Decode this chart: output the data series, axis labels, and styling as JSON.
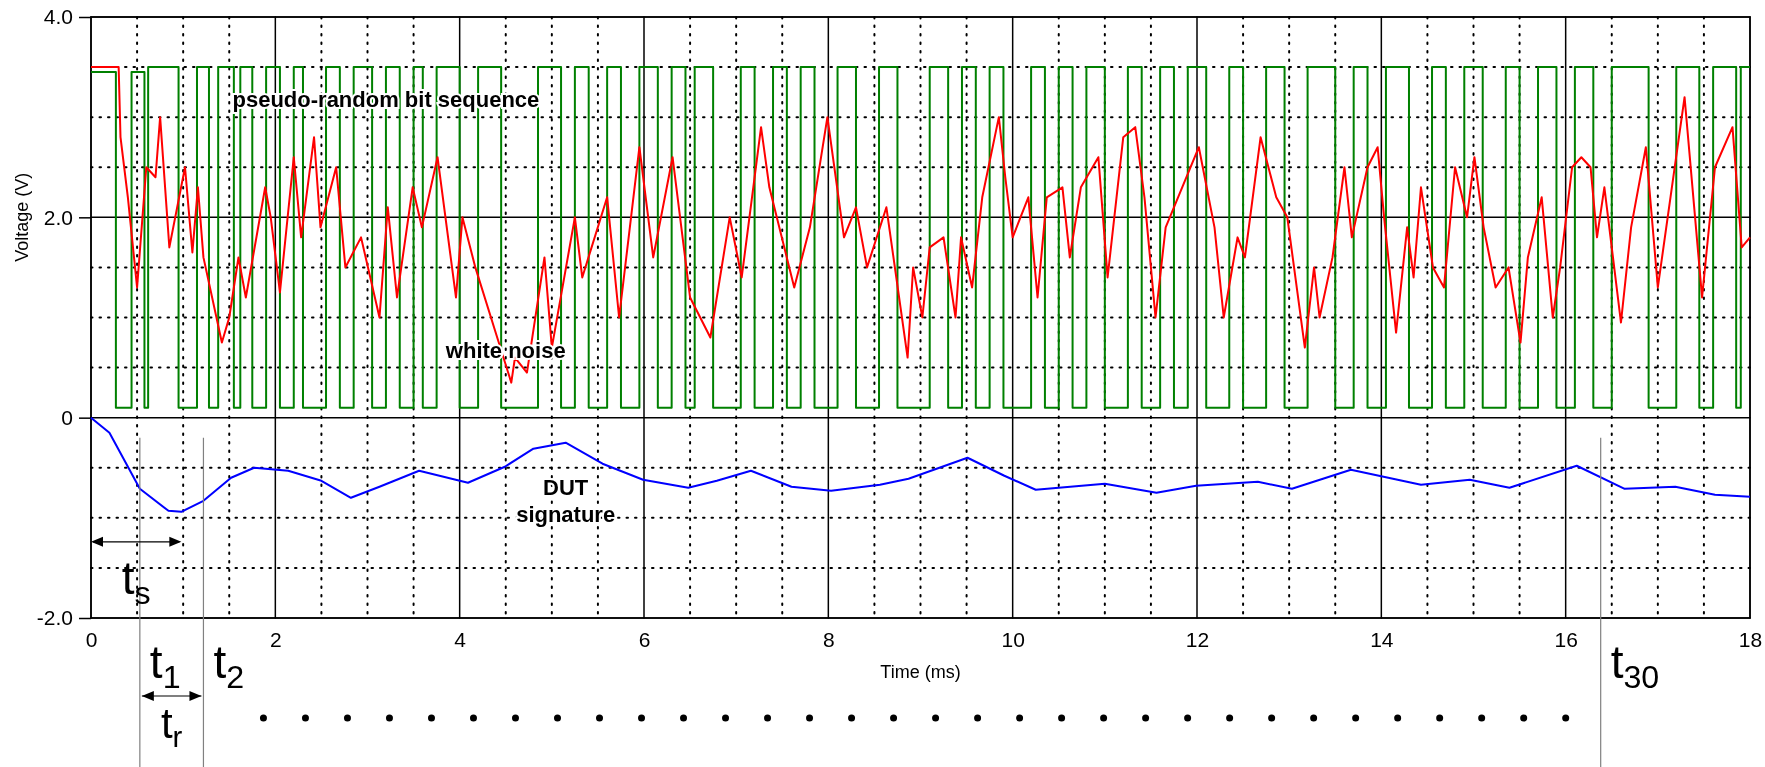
{
  "chart_data": {
    "type": "line",
    "xlabel": "Time (ms)",
    "ylabel": "Voltage (V)",
    "xlim": [
      0,
      18
    ],
    "ylim": [
      -2,
      4
    ],
    "xticks": [
      0,
      {
        "value": 0.5,
        "label": null
      },
      {
        "value": 1,
        "label": null
      },
      {
        "value": 1.5,
        "label": null
      },
      2,
      {
        "value": 2.5,
        "label": null
      },
      {
        "value": 3,
        "label": null
      },
      {
        "value": 3.5,
        "label": null
      },
      4,
      {
        "value": 4.5,
        "label": null
      },
      {
        "value": 5,
        "label": null
      },
      {
        "value": 5.5,
        "label": null
      },
      6,
      {
        "value": 6.5,
        "label": null
      },
      {
        "value": 7,
        "label": null
      },
      {
        "value": 7.5,
        "label": null
      },
      8,
      {
        "value": 8.5,
        "label": null
      },
      {
        "value": 9,
        "label": null
      },
      {
        "value": 9.5,
        "label": null
      },
      10,
      {
        "value": 10.5,
        "label": null
      },
      {
        "value": 11,
        "label": null
      },
      {
        "value": 11.5,
        "label": null
      },
      12,
      {
        "value": 12.5,
        "label": null
      },
      {
        "value": 13,
        "label": null
      },
      {
        "value": 13.5,
        "label": null
      },
      14,
      {
        "value": 14.5,
        "label": null
      },
      {
        "value": 15,
        "label": null
      },
      {
        "value": 15.5,
        "label": null
      },
      16,
      {
        "value": 16.5,
        "label": null
      },
      {
        "value": 17,
        "label": null
      },
      {
        "value": 17.5,
        "label": null
      },
      18
    ],
    "yticks": [
      {
        "value": -2,
        "label": "-2.0"
      },
      {
        "value": -1.5,
        "label": null
      },
      {
        "value": -1,
        "label": null
      },
      {
        "value": -0.5,
        "label": null
      },
      0,
      {
        "value": 0.5,
        "label": null
      },
      {
        "value": 1,
        "label": null
      },
      {
        "value": 1.5,
        "label": null
      },
      {
        "value": 2,
        "label": "2.0"
      },
      {
        "value": 2.5,
        "label": null
      },
      {
        "value": 3,
        "label": null
      },
      {
        "value": 3.5,
        "label": null
      },
      {
        "value": 4,
        "label": "4.0"
      }
    ],
    "grid": true,
    "line_style": "solid",
    "series": [
      {
        "type": "step",
        "color": "#008000",
        "x": [
          0,
          0.27,
          0.44,
          0.58,
          0.62,
          0.95,
          1.15,
          1.28,
          1.38,
          1.55,
          1.62,
          1.75,
          1.9,
          2.05,
          2.2,
          2.3,
          2.55,
          2.7,
          2.85,
          3.05,
          3.2,
          3.35,
          3.5,
          3.6,
          3.75,
          4.0,
          4.2,
          4.45,
          4.85,
          5.1,
          5.25,
          5.4,
          5.6,
          5.75,
          5.95,
          6.15,
          6.3,
          6.45,
          6.55,
          6.75,
          7.05,
          7.2,
          7.4,
          7.55,
          7.7,
          7.85,
          8.1,
          8.3,
          8.55,
          8.75,
          9.1,
          9.3,
          9.45,
          9.6,
          9.75,
          9.9,
          10.2,
          10.35,
          10.5,
          10.65,
          10.8,
          11.0,
          11.25,
          11.4,
          11.6,
          11.75,
          11.9,
          12.1,
          12.35,
          12.5,
          12.75,
          12.95,
          13.2,
          13.5,
          13.7,
          13.85,
          14.05,
          14.3,
          14.55,
          14.7,
          14.9,
          15.1,
          15.35,
          15.5,
          15.7,
          15.9,
          16.1,
          16.3,
          16.5,
          16.9,
          17.2,
          17.45,
          17.6,
          17.85,
          17.9,
          18
        ],
        "values": [
          3.45,
          0.1,
          3.45,
          0.1,
          3.5,
          0.1,
          3.5,
          0.1,
          3.5,
          0.1,
          3.5,
          0.1,
          3.5,
          0.1,
          3.5,
          0.1,
          3.5,
          0.1,
          3.5,
          0.1,
          3.5,
          0.1,
          3.5,
          0.1,
          3.5,
          0.1,
          3.5,
          0.1,
          3.5,
          0.1,
          3.5,
          0.1,
          3.5,
          0.1,
          3.5,
          0.1,
          3.5,
          0.1,
          3.5,
          0.1,
          3.5,
          0.1,
          3.5,
          0.1,
          3.5,
          0.1,
          3.5,
          0.1,
          3.5,
          0.1,
          3.5,
          0.1,
          3.5,
          0.1,
          3.5,
          0.1,
          3.5,
          0.1,
          3.5,
          0.1,
          3.5,
          0.1,
          3.5,
          0.1,
          3.5,
          0.1,
          3.5,
          0.1,
          3.5,
          0.1,
          3.5,
          0.1,
          3.5,
          0.1,
          3.5,
          0.1,
          3.5,
          0.1,
          3.5,
          0.1,
          3.5,
          0.1,
          3.5,
          0.1,
          3.5,
          0.1,
          3.5,
          0.1,
          3.5,
          0.1,
          3.5,
          0.1,
          3.5,
          0.1,
          3.5,
          3.5
        ]
      },
      {
        "color": "#ff0000",
        "x": [
          0,
          0.3,
          0.32,
          0.4,
          0.5,
          0.6,
          0.7,
          0.75,
          0.85,
          1.02,
          1.1,
          1.16,
          1.22,
          1.42,
          1.5,
          1.6,
          1.68,
          1.89,
          1.95,
          2.05,
          2.2,
          2.28,
          2.42,
          2.49,
          2.66,
          2.76,
          2.93,
          3.13,
          3.22,
          3.32,
          3.49,
          3.59,
          3.76,
          3.96,
          4.03,
          4.17,
          4.56,
          4.6,
          4.73,
          4.92,
          5.0,
          5.25,
          5.33,
          5.6,
          5.73,
          5.95,
          6.1,
          6.31,
          6.5,
          6.72,
          6.93,
          7.06,
          7.27,
          7.36,
          7.63,
          7.8,
          7.99,
          8.17,
          8.3,
          8.42,
          8.63,
          8.86,
          8.92,
          9.02,
          9.1,
          9.25,
          9.38,
          9.44,
          9.56,
          9.67,
          9.85,
          9.92,
          10.0,
          10.17,
          10.27,
          10.37,
          10.54,
          10.62,
          10.74,
          10.93,
          11.03,
          11.2,
          11.33,
          11.43,
          11.55,
          11.66,
          12.02,
          12.19,
          12.29,
          12.44,
          12.52,
          12.69,
          12.86,
          12.98,
          13.17,
          13.27,
          13.33,
          13.47,
          13.6,
          13.68,
          13.85,
          13.96,
          14.03,
          14.16,
          14.28,
          14.35,
          14.43,
          14.56,
          14.68,
          14.8,
          14.93,
          15.01,
          15.11,
          15.24,
          15.38,
          15.51,
          15.59,
          15.74,
          15.86,
          15.94,
          16.07,
          16.17,
          16.27,
          16.34,
          16.42,
          16.6,
          16.71,
          16.87,
          17.0,
          17.29,
          17.48,
          17.62,
          17.81,
          17.91,
          18.0
        ],
        "values": [
          3.5,
          3.5,
          2.8,
          2.2,
          1.3,
          2.5,
          2.4,
          3.0,
          1.7,
          2.5,
          1.65,
          2.3,
          1.6,
          0.75,
          1.0,
          1.6,
          1.2,
          2.3,
          2.0,
          1.25,
          2.6,
          1.8,
          2.8,
          1.9,
          2.5,
          1.5,
          1.8,
          1.0,
          2.1,
          1.2,
          2.3,
          1.9,
          2.6,
          1.2,
          2.0,
          1.5,
          0.35,
          0.6,
          0.45,
          1.6,
          0.7,
          2.0,
          1.4,
          2.2,
          1.0,
          2.7,
          1.6,
          2.6,
          1.2,
          0.8,
          2.0,
          1.4,
          2.9,
          2.3,
          1.3,
          1.9,
          3.0,
          1.8,
          2.1,
          1.5,
          2.1,
          0.6,
          1.5,
          1.0,
          1.7,
          1.8,
          1.0,
          1.8,
          1.3,
          2.2,
          3.0,
          2.4,
          1.8,
          2.2,
          1.2,
          2.2,
          2.3,
          1.6,
          2.3,
          2.6,
          1.4,
          2.8,
          2.9,
          2.2,
          1.0,
          1.9,
          2.7,
          1.9,
          1.0,
          1.8,
          1.6,
          2.8,
          2.2,
          2.0,
          0.7,
          1.5,
          1.0,
          1.6,
          2.5,
          1.8,
          2.5,
          2.7,
          2.0,
          0.85,
          1.9,
          1.4,
          2.3,
          1.5,
          1.3,
          2.5,
          2.0,
          2.6,
          1.9,
          1.3,
          1.5,
          0.75,
          1.6,
          2.2,
          1.0,
          1.5,
          2.5,
          2.6,
          2.5,
          1.8,
          2.3,
          0.95,
          1.9,
          2.7,
          1.3,
          3.2,
          1.2,
          2.5,
          2.9,
          1.7,
          1.8
        ]
      },
      {
        "color": "#0000ff",
        "x": [
          0,
          0.2,
          0.53,
          0.84,
          0.98,
          1.22,
          1.52,
          1.77,
          2.14,
          2.5,
          2.82,
          3.13,
          3.56,
          4.09,
          4.49,
          4.8,
          5.15,
          5.55,
          5.99,
          6.48,
          6.79,
          7.16,
          7.6,
          8.03,
          8.56,
          8.87,
          9.51,
          9.91,
          10.25,
          11.0,
          11.56,
          11.99,
          12.66,
          13.03,
          13.67,
          14.43,
          14.96,
          15.39,
          16.12,
          16.64,
          17.19,
          17.62,
          18.0
        ],
        "values": [
          0,
          -0.15,
          -0.71,
          -0.93,
          -0.94,
          -0.83,
          -0.6,
          -0.5,
          -0.53,
          -0.63,
          -0.8,
          -0.69,
          -0.53,
          -0.65,
          -0.49,
          -0.31,
          -0.25,
          -0.46,
          -0.62,
          -0.7,
          -0.63,
          -0.53,
          -0.69,
          -0.73,
          -0.67,
          -0.61,
          -0.4,
          -0.58,
          -0.72,
          -0.66,
          -0.75,
          -0.68,
          -0.64,
          -0.71,
          -0.52,
          -0.67,
          -0.62,
          -0.7,
          -0.48,
          -0.71,
          -0.69,
          -0.77,
          -0.79
        ]
      }
    ],
    "ref_lines": [
      {
        "axis": "x",
        "value": 0.53,
        "label": "t$_{1}$",
        "color": "#808080"
      },
      {
        "axis": "x",
        "value": 1.22,
        "label": "t$_{2}$",
        "color": "#808080"
      },
      {
        "axis": "x",
        "value": 16.38,
        "label": "t$_{30}$",
        "color": "#808080"
      }
    ],
    "annotations": [
      {
        "text": "pseudo-random bit sequence",
        "x": 3.2,
        "y": 3.1
      },
      {
        "text": "white noise",
        "x": 4.5,
        "y": 0.6
      },
      {
        "text": "DUT\nsignature",
        "x": 5.15,
        "y": -0.25
      },
      {
        "text": "t$_{s}$",
        "x": 0.98,
        "y": -0.94
      },
      "t$_{r}$"
    ]
  }
}
